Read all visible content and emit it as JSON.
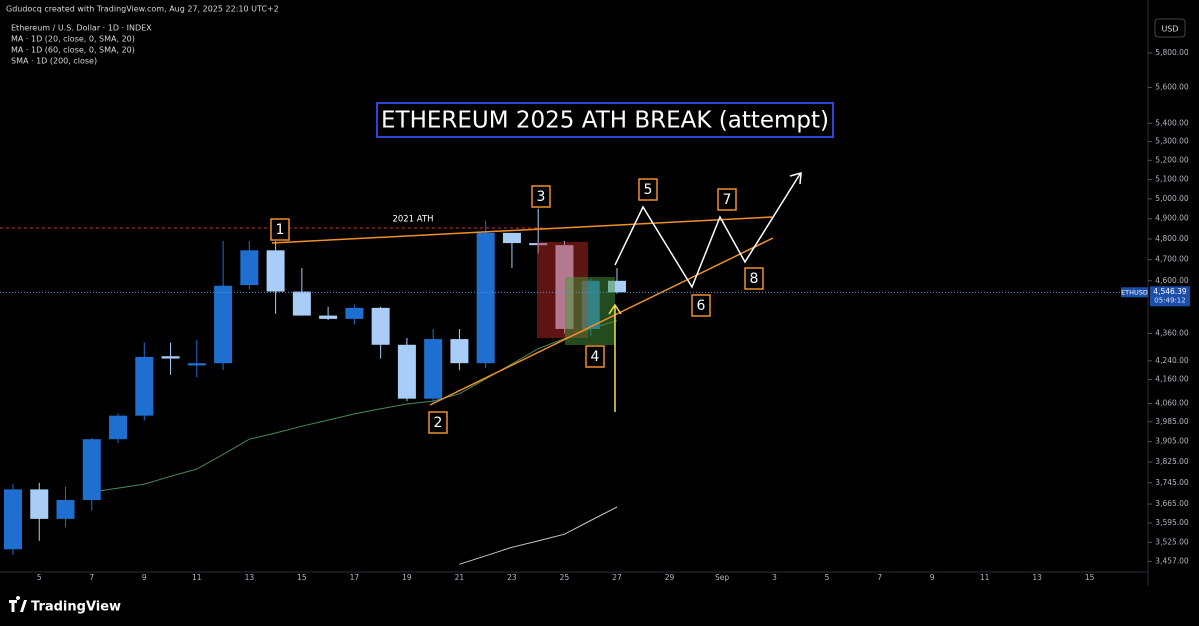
{
  "header": {
    "credit": "Gdudocq created with TradingView.com, Aug 27, 2025 22:10 UTC+2",
    "symbol": "Ethereum / U.S. Dollar · 1D · INDEX",
    "indicators": [
      "MA · 1D (20, close, 0, SMA, 20)",
      "MA · 1D (60, close, 0, SMA, 20)",
      "SMA · 1D (200, close)"
    ],
    "currency": "USD"
  },
  "chart_data": {
    "type": "candlestick",
    "title": "ETHEREUM 2025 ATH BREAK (attempt)",
    "annotations": [
      "2021 ATH",
      "1",
      "2",
      "3",
      "4",
      "5",
      "6",
      "7",
      "8"
    ],
    "categories": [
      null,
      "5",
      null,
      "7",
      null,
      "9",
      null,
      "11",
      null,
      "13",
      null,
      "15",
      null,
      "17",
      null,
      "19",
      null,
      "21",
      null,
      "23",
      null,
      "25",
      null,
      "27",
      null,
      "29",
      null,
      "Sep",
      null,
      "3",
      null,
      "5",
      null,
      "7",
      null,
      "9",
      null,
      "11",
      null,
      "13",
      null,
      "15",
      null,
      null
    ],
    "open": [
      3500,
      3720,
      3610,
      3680,
      3915,
      4010,
      4260,
      4220,
      4230,
      4580,
      4745,
      4550,
      4440,
      4425,
      4475,
      4310,
      4080,
      4335,
      4230,
      4830,
      4780,
      4770,
      4380,
      4600,
      null,
      null,
      null,
      null,
      null,
      null,
      null,
      null,
      null,
      null,
      null,
      null,
      null,
      null,
      null,
      null,
      null,
      null,
      null,
      null
    ],
    "high": [
      3740,
      3745,
      3730,
      3920,
      4020,
      4320,
      4320,
      4330,
      4790,
      4790,
      4790,
      4660,
      4480,
      4490,
      4480,
      4340,
      4380,
      4380,
      4890,
      4830,
      4950,
      4790,
      4610,
      4660,
      null,
      null,
      null,
      null,
      null,
      null,
      null,
      null,
      null,
      null,
      null,
      null,
      null,
      null,
      null,
      null,
      null,
      null,
      null,
      null
    ],
    "low": [
      3480,
      3530,
      3580,
      3640,
      3900,
      3990,
      4180,
      4170,
      4200,
      4560,
      4448,
      4440,
      4420,
      4400,
      4250,
      4070,
      4060,
      4200,
      4210,
      4660,
      4730,
      4360,
      4350,
      4540,
      null,
      null,
      null,
      null,
      null,
      null,
      null,
      null,
      null,
      null,
      null,
      null,
      null,
      null,
      null,
      null,
      null,
      null,
      null,
      null
    ],
    "close": [
      3720,
      3610,
      3680,
      3915,
      4010,
      4257,
      4250,
      4230,
      4577,
      4745,
      4550,
      4440,
      4425,
      4475,
      4310,
      4080,
      4335,
      4230,
      4830,
      4780,
      4770,
      4380,
      4600,
      4546.39,
      null,
      null,
      null,
      null,
      null,
      null,
      null,
      null,
      null,
      null,
      null,
      null,
      null,
      null,
      null,
      null,
      null,
      null,
      null,
      null
    ],
    "up_color": "#1f6fd0",
    "down_color": "#a9cdf7",
    "lines": [
      {
        "color": "#4a8a55",
        "values": [
          null,
          null,
          null,
          3710,
          3725,
          3740,
          3770,
          3798,
          3855,
          3915,
          3940,
          3967,
          3992,
          4017,
          4038,
          4058,
          4070,
          4100,
          4163,
          4227,
          4293,
          4337,
          4381,
          4417,
          null,
          null,
          null,
          null,
          null,
          null,
          null,
          null,
          null,
          null,
          null,
          null,
          null,
          null,
          null,
          null,
          null,
          null,
          null,
          null
        ]
      },
      {
        "color": "#c8c8c8",
        "values": [
          null,
          null,
          null,
          null,
          null,
          null,
          null,
          null,
          null,
          null,
          null,
          null,
          null,
          null,
          null,
          null,
          null,
          3447,
          3477,
          3507,
          3530,
          3554,
          3604,
          3654,
          null,
          null,
          null,
          null,
          null,
          null,
          null,
          null,
          null,
          null,
          null,
          null,
          null,
          null,
          null,
          null,
          null,
          null,
          null,
          null
        ]
      }
    ],
    "last_price": {
      "value": 4546.39,
      "label": "4,546.39"
    },
    "last_price_symbol": "ETHUSD",
    "countdown": "05:49:12",
    "log_scale": true,
    "ylim": [
      3420,
      6060
    ],
    "yticks": [
      {
        "value": 5800,
        "label": "5,800.00"
      },
      {
        "value": 5600,
        "label": "5,600.00"
      },
      {
        "value": 5400,
        "label": "5,400.00"
      },
      {
        "value": 5300,
        "label": "5,300.00"
      },
      {
        "value": 5200,
        "label": "5,200.00"
      },
      {
        "value": 5100,
        "label": "5,100.00"
      },
      {
        "value": 5000,
        "label": "5,000.00"
      },
      {
        "value": 4900,
        "label": "4,900.00"
      },
      {
        "value": 4800,
        "label": "4,800.00"
      },
      {
        "value": 4700,
        "label": "4,700.00"
      },
      {
        "value": 4600,
        "label": "4,600.00"
      },
      {
        "value": 4360,
        "label": "4,360.00"
      },
      {
        "value": 4240,
        "label": "4,240.00"
      },
      {
        "value": 4160,
        "label": "4,160.00"
      },
      {
        "value": 4060,
        "label": "4,060.00"
      },
      {
        "value": 3985,
        "label": "3,985.00"
      },
      {
        "value": 3905,
        "label": "3,905.00"
      },
      {
        "value": 3825,
        "label": "3,825.00"
      },
      {
        "value": 3745,
        "label": "3,745.00"
      },
      {
        "value": 3665,
        "label": "3,665.00"
      },
      {
        "value": 3595,
        "label": "3,595.00"
      },
      {
        "value": 3525,
        "label": "3,525.00"
      },
      {
        "value": 3457,
        "label": "3,457.00"
      }
    ]
  },
  "footer": {
    "brand": "TradingView"
  }
}
